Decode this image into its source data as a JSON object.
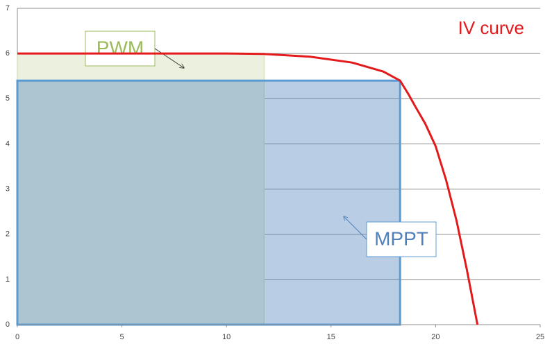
{
  "chart_data": {
    "type": "line",
    "series": [
      {
        "name": "IV curve",
        "color": "#e31a1c",
        "x": [
          0,
          5,
          10,
          11.8,
          14,
          16,
          17.5,
          18.3,
          18.7,
          19,
          19.5,
          20,
          20.5,
          21,
          21.5,
          22
        ],
        "values": [
          6,
          6,
          6,
          5.99,
          5.93,
          5.8,
          5.6,
          5.4,
          5.1,
          4.85,
          4.45,
          3.95,
          3.2,
          2.3,
          1.2,
          0
        ]
      }
    ],
    "regions": [
      {
        "name": "PWM",
        "x": 11.8,
        "y": 6,
        "color": "#ebf1de",
        "border": "#d7e4bd",
        "text_color": "#9bbb59"
      },
      {
        "name": "MPPT",
        "x": 18.3,
        "y": 5.4,
        "color": "rgba(79,129,189,0.4)",
        "border": "#5b9bd5",
        "text_color": "#4f81bd"
      }
    ],
    "xlim": [
      0,
      25
    ],
    "xticks": [
      0,
      5,
      10,
      15,
      20,
      25
    ],
    "ylim": [
      0,
      7
    ],
    "yticks": [
      0,
      1,
      2,
      3,
      4,
      5,
      6,
      7
    ],
    "grid": true
  }
}
